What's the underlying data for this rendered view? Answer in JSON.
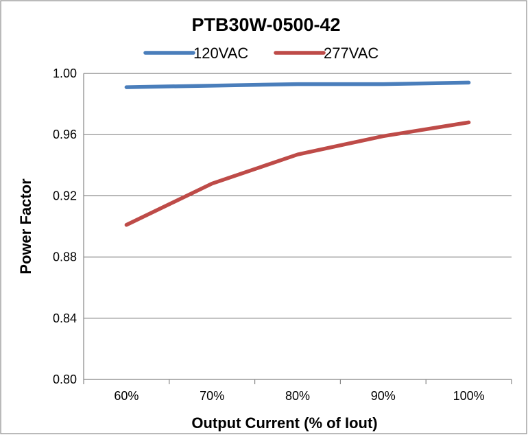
{
  "chart_data": {
    "type": "line",
    "title": "PTB30W-0500-42",
    "xlabel": "Output Current (% of Iout)",
    "ylabel": "Power Factor",
    "categories": [
      "60%",
      "70%",
      "80%",
      "90%",
      "100%"
    ],
    "series": [
      {
        "name": "120VAC",
        "color": "#4a7ebb",
        "values": [
          0.991,
          0.992,
          0.993,
          0.993,
          0.994
        ]
      },
      {
        "name": "277VAC",
        "color": "#be4b48",
        "values": [
          0.901,
          0.928,
          0.947,
          0.959,
          0.968
        ]
      }
    ],
    "ylim": [
      0.8,
      1.0
    ],
    "yticks": [
      "0.80",
      "0.84",
      "0.88",
      "0.92",
      "0.96",
      "1.00"
    ],
    "grid": true,
    "legend_position": "top"
  }
}
